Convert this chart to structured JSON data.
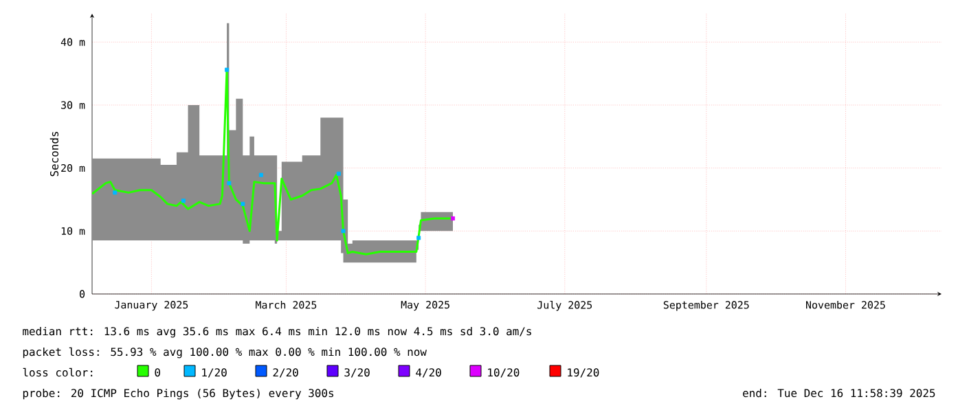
{
  "chart_data": {
    "type": "line",
    "ylabel": "Seconds",
    "xlim": [
      "2024-12-06",
      "2025-12-13"
    ],
    "ylim": [
      0,
      44.5
    ],
    "xticks": [
      {
        "value": "2025-01-01",
        "label": "January 2025"
      },
      {
        "value": "2025-03-01",
        "label": "March 2025"
      },
      {
        "value": "2025-05-01",
        "label": "May 2025"
      },
      {
        "value": "2025-07-01",
        "label": "July 2025"
      },
      {
        "value": "2025-09-01",
        "label": "September 2025"
      },
      {
        "value": "2025-11-01",
        "label": "November 2025"
      }
    ],
    "yticks": [
      0,
      {
        "value": 10,
        "label": "10 m"
      },
      {
        "value": 20,
        "label": "20 m"
      },
      {
        "value": 30,
        "label": "30 m"
      },
      {
        "value": 40,
        "label": "40 m"
      }
    ],
    "grid": true,
    "legend": "bottom",
    "line_style": "solid",
    "series": [
      {
        "name": "0",
        "color": "#26ff00",
        "x": [
          "2024-12-06",
          "2024-12-12",
          "2024-12-14",
          "2024-12-16",
          "2024-12-22",
          "2024-12-27",
          "2025-01-01",
          "2025-01-05",
          "2025-01-08",
          "2025-01-12",
          "2025-01-14",
          "2025-01-17",
          "2025-01-22",
          "2025-01-26",
          "2025-01-31",
          "2025-02-01",
          "2025-02-03",
          "2025-02-04",
          "2025-02-07",
          "2025-02-10",
          "2025-02-13",
          "2025-02-15",
          "2025-02-19",
          "2025-02-24",
          "2025-02-25",
          "2025-02-27",
          "2025-03-03",
          "2025-03-08",
          "2025-03-12",
          "2025-03-16",
          "2025-03-21",
          "2025-03-23",
          "2025-03-25",
          "2025-03-26",
          "2025-03-28",
          "2025-03-30",
          "2025-04-05",
          "2025-04-11",
          "2025-04-19",
          "2025-04-27",
          "2025-04-28",
          "2025-04-29",
          "2025-05-05",
          "2025-05-13"
        ],
        "values": [
          15.9,
          17.6,
          17.8,
          16.5,
          16.1,
          16.5,
          16.5,
          15.4,
          14.3,
          14.0,
          14.6,
          13.5,
          14.6,
          14.0,
          14.3,
          15.6,
          35.6,
          17.6,
          15.0,
          14.0,
          10.0,
          17.8,
          17.6,
          17.6,
          8.5,
          18.3,
          15.0,
          15.6,
          16.5,
          16.7,
          17.6,
          18.9,
          15.6,
          10.0,
          6.5,
          6.7,
          6.3,
          6.7,
          6.7,
          6.7,
          9.1,
          11.7,
          12.0,
          12.0
        ],
        "lower": [
          8.5,
          8.5,
          8.5,
          8.5,
          8.5,
          8.5,
          8.5,
          8.5,
          8.5,
          8.5,
          8.5,
          8.5,
          8.5,
          8.5,
          8.5,
          8.5,
          8.5,
          8.5,
          8.5,
          8.5,
          8.0,
          8.5,
          8.5,
          8.5,
          8.0,
          8.5,
          8.5,
          8.5,
          8.5,
          8.5,
          8.5,
          8.5,
          8.5,
          6.5,
          5.0,
          5.0,
          5.0,
          5.0,
          5.0,
          5.0,
          7.0,
          10.0,
          10.0,
          10.0
        ],
        "upper": [
          21.5,
          21.5,
          21.5,
          21.5,
          21.5,
          21.5,
          21.5,
          20.5,
          20.5,
          22.5,
          22.5,
          30.0,
          22.0,
          22.0,
          22.0,
          22.0,
          43.0,
          26.0,
          31.0,
          22.0,
          25.0,
          22.0,
          22.0,
          22.0,
          10.0,
          21.0,
          21.0,
          22.0,
          22.0,
          28.0,
          28.0,
          28.0,
          28.0,
          15.0,
          8.0,
          8.5,
          8.5,
          8.5,
          8.5,
          8.5,
          11.0,
          13.0,
          13.0,
          13.0
        ]
      },
      {
        "name": "1/20",
        "color": "#00b8ff",
        "type": "scatter",
        "x": [
          "2024-12-16",
          "2025-01-15",
          "2025-02-03",
          "2025-02-04",
          "2025-02-10",
          "2025-02-18",
          "2025-03-24",
          "2025-03-26",
          "2025-04-28"
        ],
        "values": [
          16.1,
          14.8,
          35.6,
          17.6,
          14.3,
          18.9,
          19.1,
          10.0,
          8.9
        ]
      },
      {
        "name": "2/20",
        "color": "#0059ff",
        "type": "scatter"
      },
      {
        "name": "3/20",
        "color": "#5e00ff",
        "type": "scatter"
      },
      {
        "name": "4/20",
        "color": "#7e00ff",
        "type": "scatter"
      },
      {
        "name": "10/20",
        "color": "#dd00ff",
        "type": "scatter",
        "x": [
          "2025-05-13"
        ],
        "values": [
          12.0
        ]
      },
      {
        "name": "19/20",
        "color": "#ff0000",
        "type": "scatter"
      }
    ],
    "annotations": [
      "median rtt:  13.6 ms avg  35.6 ms max  6.4 ms min  12.0 ms now  4.5 ms sd  3.0   am/s",
      "packet loss: 55.93 % avg  100.00 % max  0.00 % min  100.00 % now",
      "loss color:",
      "probe:       20 ICMP Echo Pings (56 Bytes) every 300s",
      "end: Tue Dec 16 11:58:39 2025"
    ]
  }
}
